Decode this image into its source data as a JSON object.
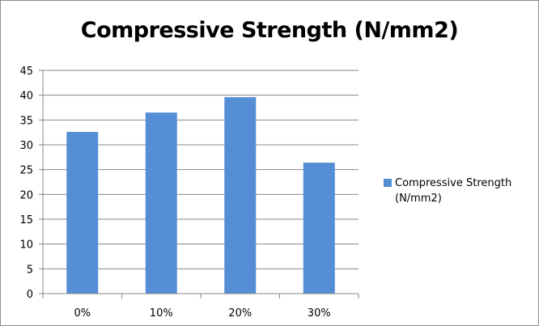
{
  "chart_data": {
    "type": "bar",
    "title": "Compressive Strength (N/mm2)",
    "categories": [
      "0%",
      "10%",
      "20%",
      "30%"
    ],
    "series": [
      {
        "name": "Compressive Strength (N/mm2)",
        "values": [
          32.6,
          36.5,
          39.6,
          26.4
        ],
        "color": "#558ed5"
      }
    ],
    "xlabel": "",
    "ylabel": "",
    "ylim": [
      0,
      45
    ],
    "yticks": [
      "0",
      "5",
      "10",
      "15",
      "20",
      "25",
      "30",
      "35",
      "40",
      "45"
    ],
    "grid": true,
    "legend_position": "right"
  },
  "colors": {
    "bar": "#558ed5",
    "gridline": "#878787",
    "axis": "#878787"
  }
}
